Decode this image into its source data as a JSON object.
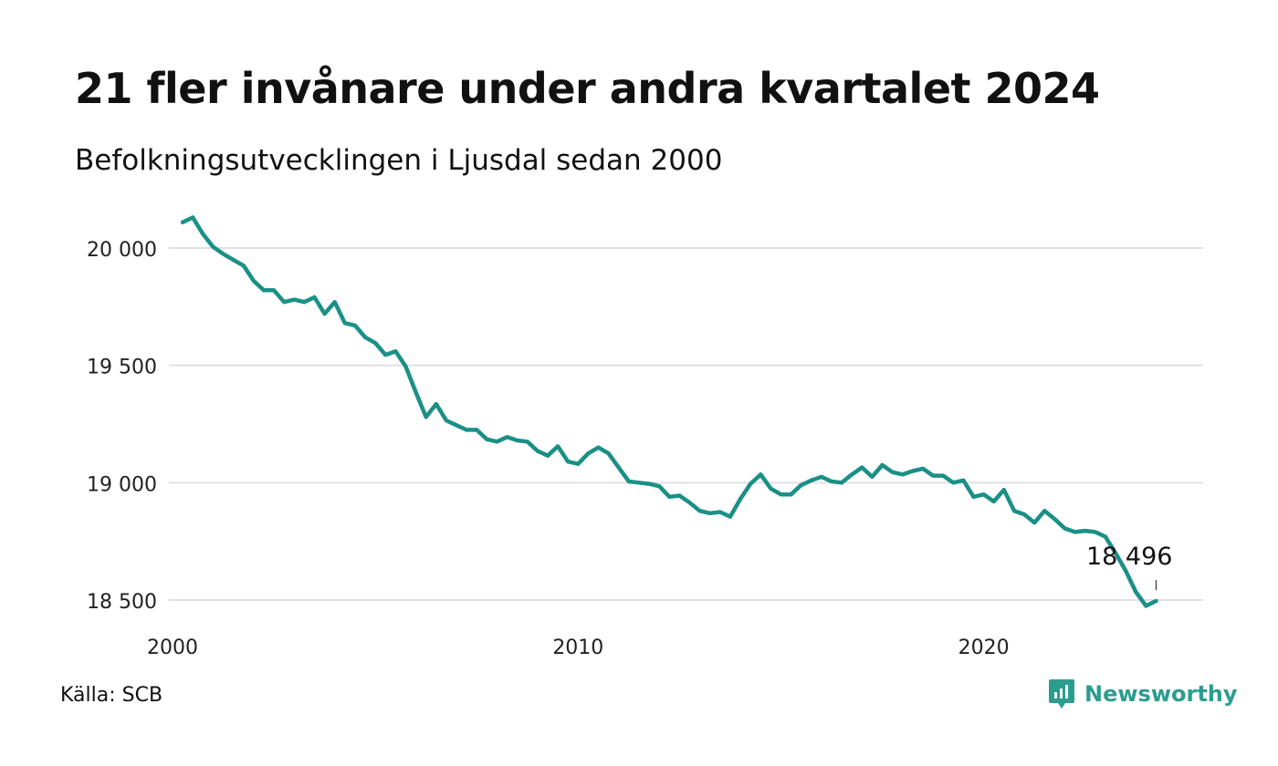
{
  "header": {
    "title": "21 fler invånare under andra kvartalet 2024",
    "subtitle": "Befolkningsutvecklingen i Ljusdal sedan 2000"
  },
  "footer": {
    "source": "Källa: SCB",
    "brand": "Newsworthy",
    "brand_icon": "newsworthy-logo-icon"
  },
  "colors": {
    "line": "#1a9086",
    "grid": "#e0e0e6",
    "brand": "#2a9d8f"
  },
  "chart_data": {
    "type": "line",
    "title": "21 fler invånare under andra kvartalet 2024",
    "subtitle": "Befolkningsutvecklingen i Ljusdal sedan 2000",
    "xlabel": "",
    "ylabel": "",
    "ylim": [
      18450,
      20150
    ],
    "xlim": [
      2000,
      2025.5
    ],
    "grid": true,
    "legend": "none",
    "y_ticks": [
      {
        "value": 20000,
        "label": "20 000"
      },
      {
        "value": 19500,
        "label": "19 500"
      },
      {
        "value": 19000,
        "label": "19 000"
      },
      {
        "value": 18500,
        "label": "18 500"
      }
    ],
    "x_ticks": [
      {
        "value": 2000,
        "label": "2000"
      },
      {
        "value": 2010,
        "label": "2010"
      },
      {
        "value": 2020,
        "label": "2020"
      }
    ],
    "annotation": {
      "x": 2024.25,
      "y": 18496,
      "label": "18 496"
    },
    "series": [
      {
        "x": [
          2000.25,
          2000.5,
          2000.75,
          2001.0,
          2001.25,
          2001.5,
          2001.75,
          2002.0,
          2002.25,
          2002.5,
          2002.75,
          2003.0,
          2003.25,
          2003.5,
          2003.75,
          2004.0,
          2004.25,
          2004.5,
          2004.75,
          2005.0,
          2005.25,
          2005.5,
          2005.75,
          2006.0,
          2006.25,
          2006.5,
          2006.75,
          2007.0,
          2007.25,
          2007.5,
          2007.75,
          2008.0,
          2008.25,
          2008.5,
          2008.75,
          2009.0,
          2009.25,
          2009.5,
          2009.75,
          2010.0,
          2010.25,
          2010.5,
          2010.75,
          2011.0,
          2011.25,
          2011.5,
          2011.75,
          2012.0,
          2012.25,
          2012.5,
          2012.75,
          2013.0,
          2013.25,
          2013.5,
          2013.75,
          2014.0,
          2014.25,
          2014.5,
          2014.75,
          2015.0,
          2015.25,
          2015.5,
          2015.75,
          2016.0,
          2016.25,
          2016.5,
          2016.75,
          2017.0,
          2017.25,
          2017.5,
          2017.75,
          2018.0,
          2018.25,
          2018.5,
          2018.75,
          2019.0,
          2019.25,
          2019.5,
          2019.75,
          2020.0,
          2020.25,
          2020.5,
          2020.75,
          2021.0,
          2021.25,
          2021.5,
          2021.75,
          2022.0,
          2022.25,
          2022.5,
          2022.75,
          2023.0,
          2023.25,
          2023.5,
          2023.75,
          2024.0,
          2024.25
        ],
        "values": [
          20110,
          20130,
          20060,
          20005,
          19975,
          19950,
          19925,
          19860,
          19820,
          19820,
          19770,
          19780,
          19770,
          19790,
          19720,
          19770,
          19680,
          19670,
          19620,
          19595,
          19545,
          19560,
          19495,
          19385,
          19280,
          19335,
          19265,
          19245,
          19225,
          19225,
          19185,
          19175,
          19195,
          19180,
          19175,
          19135,
          19115,
          19155,
          19090,
          19080,
          19125,
          19150,
          19125,
          19065,
          19005,
          19000,
          18995,
          18985,
          18940,
          18945,
          18915,
          18880,
          18870,
          18875,
          18855,
          18930,
          18995,
          19035,
          18975,
          18950,
          18950,
          18990,
          19010,
          19025,
          19005,
          19000,
          19035,
          19065,
          19025,
          19075,
          19045,
          19035,
          19050,
          19060,
          19030,
          19030,
          19000,
          19010,
          18940,
          18950,
          18920,
          18970,
          18880,
          18865,
          18830,
          18880,
          18845,
          18805,
          18790,
          18795,
          18790,
          18770,
          18700,
          18625,
          18535,
          18475,
          18496
        ]
      }
    ]
  }
}
